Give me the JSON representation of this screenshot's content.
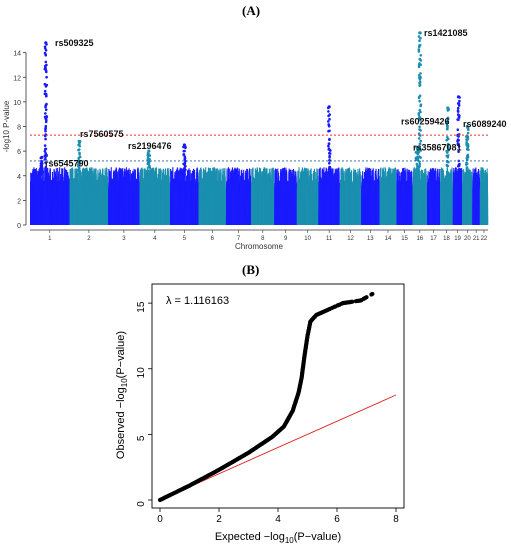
{
  "panel_a": {
    "label": "(A)",
    "chart_data": {
      "type": "scatter",
      "subtype": "manhattan",
      "xlabel": "Chromosome",
      "ylabel": "-log10 P-value",
      "ylim": [
        0,
        16
      ],
      "yticks": [
        0,
        2,
        4,
        6,
        8,
        10,
        12,
        14
      ],
      "chromosomes": [
        "1",
        "2",
        "3",
        "4",
        "5",
        "6",
        "7",
        "8",
        "9",
        "10",
        "11",
        "12",
        "13",
        "14",
        "15",
        "16",
        "17",
        "18",
        "19",
        "20",
        "21",
        "22"
      ],
      "chrom_sizes": [
        249,
        243,
        198,
        191,
        181,
        171,
        159,
        146,
        141,
        136,
        135,
        134,
        115,
        107,
        102,
        90,
        83,
        80,
        59,
        64,
        47,
        51
      ],
      "colors": [
        "#1a1aff",
        "#1a8faf"
      ],
      "thresholds": [
        {
          "value": 7.3,
          "color": "#e03030",
          "style": "dashed"
        },
        {
          "value": 5.2,
          "color": "#2060a0",
          "style": "dashed"
        }
      ],
      "peaks": [
        {
          "chrom": "1",
          "pos": 0.4,
          "height": 14.8
        },
        {
          "chrom": "1",
          "pos": 0.3,
          "height": 5.5
        },
        {
          "chrom": "2",
          "pos": 0.25,
          "height": 6.8
        },
        {
          "chrom": "4",
          "pos": 0.3,
          "height": 6.0
        },
        {
          "chrom": "5",
          "pos": 0.5,
          "height": 6.5
        },
        {
          "chrom": "11",
          "pos": 0.5,
          "height": 9.6
        },
        {
          "chrom": "16",
          "pos": 0.5,
          "height": 15.6
        },
        {
          "chrom": "16",
          "pos": 0.3,
          "height": 6.3
        },
        {
          "chrom": "18",
          "pos": 0.6,
          "height": 9.5
        },
        {
          "chrom": "19",
          "pos": 0.6,
          "height": 10.4
        },
        {
          "chrom": "20",
          "pos": 0.5,
          "height": 8.0
        }
      ],
      "annotations": [
        {
          "text": "rs509325",
          "chrom": "1",
          "pos": 0.4,
          "y": 14.8
        },
        {
          "text": "rs7560575",
          "chrom": "2",
          "pos": 0.25,
          "y": 7.4
        },
        {
          "text": "rs2196476",
          "chrom": "4",
          "pos": 0.3,
          "y": 6.4
        },
        {
          "text": "rs6545790",
          "chrom": "1",
          "pos": 0.3,
          "y": 5.0
        },
        {
          "text": "rs1421085",
          "chrom": "16",
          "pos": 0.5,
          "y": 15.6
        },
        {
          "text": "rs60259426",
          "chrom": "16",
          "pos": 0.5,
          "y": 8.4
        },
        {
          "text": "rs6089240",
          "chrom": "20",
          "pos": 0.5,
          "y": 8.2
        },
        {
          "text": "rs35867081",
          "chrom": "16",
          "pos": 0.5,
          "y": 6.3
        }
      ]
    }
  },
  "panel_b": {
    "label": "(B)",
    "chart_data": {
      "type": "scatter",
      "subtype": "qq",
      "xlabel_prefix": "Expected −log",
      "xlabel_sub": "10",
      "xlabel_suffix": "(P−value)",
      "ylabel_prefix": "Observed −log",
      "ylabel_sub": "10",
      "ylabel_suffix": "(P−value)",
      "lambda_text": "λ = 1.116163",
      "xlim": [
        0,
        8
      ],
      "ylim": [
        0,
        16
      ],
      "xticks": [
        0,
        2,
        4,
        6,
        8
      ],
      "yticks": [
        0,
        5,
        10,
        15
      ],
      "reference_line": {
        "slope": 1,
        "color": "#e02020"
      },
      "curve": [
        {
          "x": 0,
          "y": 0
        },
        {
          "x": 1,
          "y": 1.1
        },
        {
          "x": 2,
          "y": 2.3
        },
        {
          "x": 3,
          "y": 3.6
        },
        {
          "x": 3.8,
          "y": 4.8
        },
        {
          "x": 4.2,
          "y": 5.6
        },
        {
          "x": 4.5,
          "y": 6.8
        },
        {
          "x": 4.7,
          "y": 8.2
        },
        {
          "x": 4.8,
          "y": 9.3
        },
        {
          "x": 4.9,
          "y": 11.0
        },
        {
          "x": 5.0,
          "y": 12.5
        },
        {
          "x": 5.1,
          "y": 13.6
        },
        {
          "x": 5.3,
          "y": 14.1
        },
        {
          "x": 5.8,
          "y": 14.6
        },
        {
          "x": 6.2,
          "y": 15.0
        },
        {
          "x": 6.8,
          "y": 15.2
        },
        {
          "x": 7.2,
          "y": 15.7
        }
      ]
    }
  }
}
